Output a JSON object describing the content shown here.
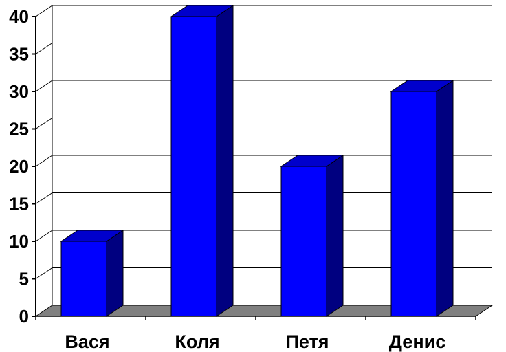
{
  "chart_data": {
    "type": "bar",
    "title": "",
    "xlabel": "",
    "ylabel": "",
    "categories": [
      "Вася",
      "Коля",
      "Петя",
      "Денис"
    ],
    "values": [
      10,
      40,
      20,
      30
    ],
    "ylim": [
      0,
      40
    ],
    "yticks": [
      "0",
      "5",
      "10",
      "15",
      "20",
      "25",
      "30",
      "35",
      "40"
    ],
    "grid": true,
    "legend": "none",
    "three_d": true,
    "colors": {
      "bar_front": "#0000FF",
      "bar_side": "#000080",
      "bar_top": "#0000CC",
      "floor": "#808080",
      "gridline": "#000000",
      "axis": "#000000"
    }
  }
}
